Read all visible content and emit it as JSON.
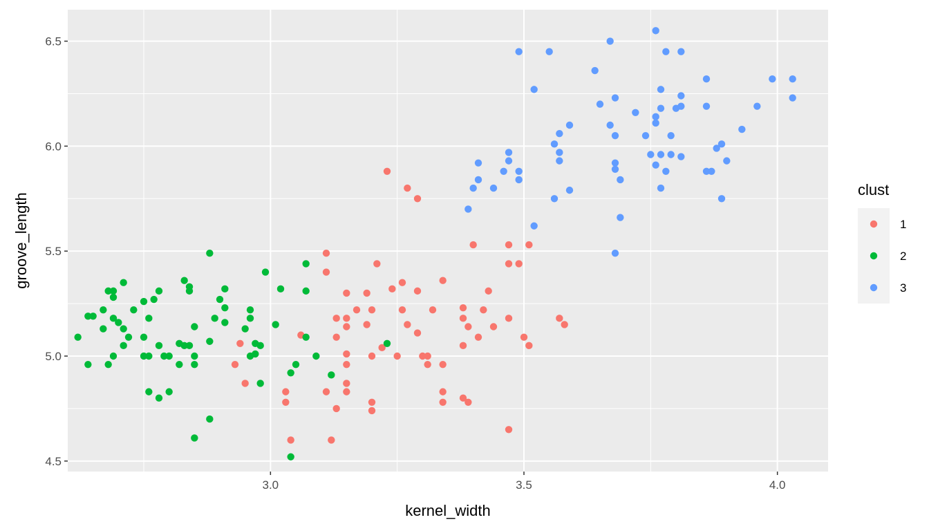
{
  "chart_data": {
    "type": "scatter",
    "xlabel": "kernel_width",
    "ylabel": "groove_length",
    "xlim": [
      2.6,
      4.1
    ],
    "ylim": [
      4.45,
      6.65
    ],
    "x_ticks": [
      3.0,
      3.5,
      4.0
    ],
    "x_tick_labels": [
      "3.0",
      "3.5",
      "4.0"
    ],
    "y_ticks": [
      4.5,
      5.0,
      5.5,
      6.0,
      6.5
    ],
    "y_tick_labels": [
      "4.5",
      "5.0",
      "5.5",
      "6.0",
      "6.5"
    ],
    "grid": true,
    "background": "#EBEBEB",
    "legend": {
      "title": "clust",
      "position": "right"
    },
    "series": [
      {
        "name": "1",
        "color": "#F8766D",
        "points": [
          [
            3.23,
            5.88
          ],
          [
            3.27,
            5.8
          ],
          [
            3.29,
            5.75
          ],
          [
            3.4,
            5.53
          ],
          [
            3.47,
            5.53
          ],
          [
            3.51,
            5.53
          ],
          [
            3.11,
            5.49
          ],
          [
            3.11,
            5.4
          ],
          [
            3.21,
            5.44
          ],
          [
            3.47,
            5.44
          ],
          [
            3.49,
            5.44
          ],
          [
            3.34,
            5.36
          ],
          [
            3.26,
            5.35
          ],
          [
            3.24,
            5.32
          ],
          [
            3.29,
            5.31
          ],
          [
            3.15,
            5.3
          ],
          [
            3.19,
            5.3
          ],
          [
            3.43,
            5.31
          ],
          [
            3.17,
            5.22
          ],
          [
            3.2,
            5.22
          ],
          [
            3.26,
            5.22
          ],
          [
            3.32,
            5.22
          ],
          [
            3.38,
            5.23
          ],
          [
            3.42,
            5.22
          ],
          [
            3.38,
            5.18
          ],
          [
            3.13,
            5.18
          ],
          [
            3.15,
            5.18
          ],
          [
            3.47,
            5.18
          ],
          [
            3.57,
            5.18
          ],
          [
            3.19,
            5.15
          ],
          [
            3.27,
            5.15
          ],
          [
            3.15,
            5.14
          ],
          [
            3.39,
            5.14
          ],
          [
            3.44,
            5.14
          ],
          [
            3.58,
            5.15
          ],
          [
            3.29,
            5.11
          ],
          [
            3.06,
            5.1
          ],
          [
            3.13,
            5.09
          ],
          [
            3.41,
            5.09
          ],
          [
            3.5,
            5.09
          ],
          [
            2.94,
            5.06
          ],
          [
            3.22,
            5.04
          ],
          [
            3.38,
            5.05
          ],
          [
            3.51,
            5.05
          ],
          [
            3.15,
            5.01
          ],
          [
            3.2,
            5.0
          ],
          [
            3.25,
            5.0
          ],
          [
            3.3,
            5.0
          ],
          [
            3.31,
            5.0
          ],
          [
            2.93,
            4.96
          ],
          [
            3.15,
            4.96
          ],
          [
            3.31,
            4.96
          ],
          [
            3.34,
            4.96
          ],
          [
            2.95,
            4.87
          ],
          [
            3.15,
            4.87
          ],
          [
            3.11,
            4.83
          ],
          [
            3.15,
            4.83
          ],
          [
            3.03,
            4.83
          ],
          [
            3.34,
            4.83
          ],
          [
            3.03,
            4.78
          ],
          [
            3.2,
            4.78
          ],
          [
            3.34,
            4.78
          ],
          [
            3.38,
            4.8
          ],
          [
            3.39,
            4.78
          ],
          [
            3.13,
            4.75
          ],
          [
            3.2,
            4.74
          ],
          [
            3.04,
            4.6
          ],
          [
            3.12,
            4.6
          ],
          [
            3.47,
            4.65
          ]
        ]
      },
      {
        "name": "2",
        "color": "#00BA38",
        "points": [
          [
            2.88,
            5.49
          ],
          [
            2.99,
            5.4
          ],
          [
            2.71,
            5.35
          ],
          [
            2.83,
            5.36
          ],
          [
            3.07,
            5.44
          ],
          [
            2.68,
            5.31
          ],
          [
            2.69,
            5.31
          ],
          [
            2.78,
            5.31
          ],
          [
            2.84,
            5.31
          ],
          [
            2.91,
            5.32
          ],
          [
            3.02,
            5.32
          ],
          [
            3.07,
            5.31
          ],
          [
            2.69,
            5.28
          ],
          [
            2.75,
            5.26
          ],
          [
            2.77,
            5.27
          ],
          [
            2.84,
            5.33
          ],
          [
            2.9,
            5.27
          ],
          [
            2.73,
            5.22
          ],
          [
            2.67,
            5.22
          ],
          [
            2.91,
            5.23
          ],
          [
            2.96,
            5.22
          ],
          [
            2.64,
            5.19
          ],
          [
            2.65,
            5.19
          ],
          [
            2.69,
            5.18
          ],
          [
            2.76,
            5.18
          ],
          [
            2.89,
            5.18
          ],
          [
            2.96,
            5.18
          ],
          [
            2.91,
            5.16
          ],
          [
            2.67,
            5.13
          ],
          [
            2.71,
            5.13
          ],
          [
            2.85,
            5.14
          ],
          [
            2.95,
            5.13
          ],
          [
            3.01,
            5.15
          ],
          [
            2.62,
            5.09
          ],
          [
            2.72,
            5.09
          ],
          [
            2.75,
            5.09
          ],
          [
            2.88,
            5.07
          ],
          [
            2.7,
            5.16
          ],
          [
            3.07,
            5.09
          ],
          [
            2.71,
            5.05
          ],
          [
            2.78,
            5.05
          ],
          [
            2.82,
            5.06
          ],
          [
            2.83,
            5.05
          ],
          [
            2.84,
            5.05
          ],
          [
            2.97,
            5.06
          ],
          [
            2.98,
            5.05
          ],
          [
            3.23,
            5.06
          ],
          [
            2.69,
            5.0
          ],
          [
            2.75,
            5.0
          ],
          [
            2.76,
            5.0
          ],
          [
            2.79,
            5.0
          ],
          [
            2.8,
            5.0
          ],
          [
            2.85,
            5.0
          ],
          [
            2.96,
            5.0
          ],
          [
            2.97,
            5.01
          ],
          [
            3.09,
            5.0
          ],
          [
            2.64,
            4.96
          ],
          [
            2.68,
            4.96
          ],
          [
            2.82,
            4.96
          ],
          [
            2.85,
            4.96
          ],
          [
            3.05,
            4.96
          ],
          [
            3.04,
            4.92
          ],
          [
            3.12,
            4.91
          ],
          [
            2.98,
            4.87
          ],
          [
            2.76,
            4.83
          ],
          [
            2.8,
            4.83
          ],
          [
            2.78,
            4.8
          ],
          [
            2.88,
            4.7
          ],
          [
            2.85,
            4.61
          ],
          [
            3.04,
            4.52
          ]
        ]
      },
      {
        "name": "3",
        "color": "#619CFF",
        "points": [
          [
            3.76,
            6.55
          ],
          [
            3.49,
            6.45
          ],
          [
            3.55,
            6.45
          ],
          [
            3.67,
            6.5
          ],
          [
            3.78,
            6.45
          ],
          [
            3.81,
            6.45
          ],
          [
            3.64,
            6.36
          ],
          [
            3.86,
            6.32
          ],
          [
            3.99,
            6.32
          ],
          [
            4.03,
            6.32
          ],
          [
            3.52,
            6.27
          ],
          [
            3.77,
            6.27
          ],
          [
            3.81,
            6.24
          ],
          [
            3.68,
            6.23
          ],
          [
            4.03,
            6.23
          ],
          [
            3.65,
            6.2
          ],
          [
            3.8,
            6.18
          ],
          [
            3.81,
            6.19
          ],
          [
            3.77,
            6.18
          ],
          [
            3.86,
            6.19
          ],
          [
            3.96,
            6.19
          ],
          [
            3.72,
            6.16
          ],
          [
            3.76,
            6.14
          ],
          [
            3.59,
            6.1
          ],
          [
            3.67,
            6.1
          ],
          [
            3.76,
            6.11
          ],
          [
            3.57,
            6.06
          ],
          [
            3.68,
            6.05
          ],
          [
            3.74,
            6.05
          ],
          [
            3.79,
            6.05
          ],
          [
            3.93,
            6.08
          ],
          [
            3.56,
            6.01
          ],
          [
            3.88,
            5.99
          ],
          [
            3.89,
            6.01
          ],
          [
            3.47,
            5.97
          ],
          [
            3.57,
            5.97
          ],
          [
            3.75,
            5.96
          ],
          [
            3.77,
            5.96
          ],
          [
            3.79,
            5.96
          ],
          [
            3.81,
            5.95
          ],
          [
            3.47,
            5.93
          ],
          [
            3.57,
            5.93
          ],
          [
            3.41,
            5.92
          ],
          [
            3.68,
            5.92
          ],
          [
            3.9,
            5.93
          ],
          [
            3.46,
            5.88
          ],
          [
            3.49,
            5.88
          ],
          [
            3.68,
            5.89
          ],
          [
            3.76,
            5.91
          ],
          [
            3.78,
            5.88
          ],
          [
            3.86,
            5.88
          ],
          [
            3.87,
            5.88
          ],
          [
            3.41,
            5.84
          ],
          [
            3.49,
            5.84
          ],
          [
            3.69,
            5.84
          ],
          [
            3.4,
            5.8
          ],
          [
            3.44,
            5.8
          ],
          [
            3.59,
            5.79
          ],
          [
            3.77,
            5.8
          ],
          [
            3.56,
            5.75
          ],
          [
            3.89,
            5.75
          ],
          [
            3.39,
            5.7
          ],
          [
            3.69,
            5.66
          ],
          [
            3.52,
            5.62
          ],
          [
            3.68,
            5.49
          ]
        ]
      }
    ]
  }
}
